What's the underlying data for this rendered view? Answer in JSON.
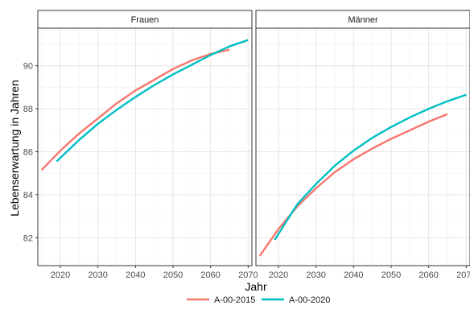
{
  "chart_data": {
    "type": "line",
    "xlabel": "Jahr",
    "ylabel": "Lebenserwartung in Jahren",
    "xlim": [
      2014,
      2071
    ],
    "ylim": [
      80.7,
      91.75
    ],
    "x_ticks": [
      2020,
      2030,
      2040,
      2050,
      2060,
      2070
    ],
    "y_ticks": [
      82,
      84,
      86,
      88,
      90
    ],
    "grid": true,
    "legend_position": "bottom",
    "panels": [
      {
        "name": "Frauen",
        "series": [
          {
            "name": "A-00-2015",
            "color": "#F8766D",
            "x": [
              2015,
              2020,
              2025,
              2030,
              2035,
              2040,
              2045,
              2050,
              2055,
              2060,
              2065
            ],
            "y": [
              85.15,
              86.05,
              86.85,
              87.55,
              88.25,
              88.85,
              89.35,
              89.85,
              90.25,
              90.55,
              90.75
            ]
          },
          {
            "name": "A-00-2020",
            "color": "#00BFC4",
            "x": [
              2019,
              2025,
              2030,
              2035,
              2040,
              2045,
              2050,
              2055,
              2060,
              2065,
              2070
            ],
            "y": [
              85.55,
              86.55,
              87.3,
              87.95,
              88.55,
              89.1,
              89.6,
              90.05,
              90.5,
              90.9,
              91.2
            ]
          }
        ]
      },
      {
        "name": "Männer",
        "series": [
          {
            "name": "A-00-2015",
            "color": "#F8766D",
            "x": [
              2015,
              2020,
              2025,
              2030,
              2035,
              2040,
              2045,
              2050,
              2055,
              2060,
              2065
            ],
            "y": [
              81.15,
              82.4,
              83.45,
              84.3,
              85.05,
              85.65,
              86.15,
              86.6,
              87.0,
              87.4,
              87.75
            ]
          },
          {
            "name": "A-00-2020",
            "color": "#00BFC4",
            "x": [
              2019,
              2025,
              2030,
              2035,
              2040,
              2045,
              2050,
              2055,
              2060,
              2065,
              2070
            ],
            "y": [
              81.9,
              83.55,
              84.5,
              85.35,
              86.05,
              86.65,
              87.15,
              87.6,
              88.0,
              88.35,
              88.65
            ]
          }
        ]
      }
    ],
    "legend": [
      {
        "label": "A-00-2015",
        "color": "#F8766D"
      },
      {
        "label": "A-00-2020",
        "color": "#00BFC4"
      }
    ]
  }
}
